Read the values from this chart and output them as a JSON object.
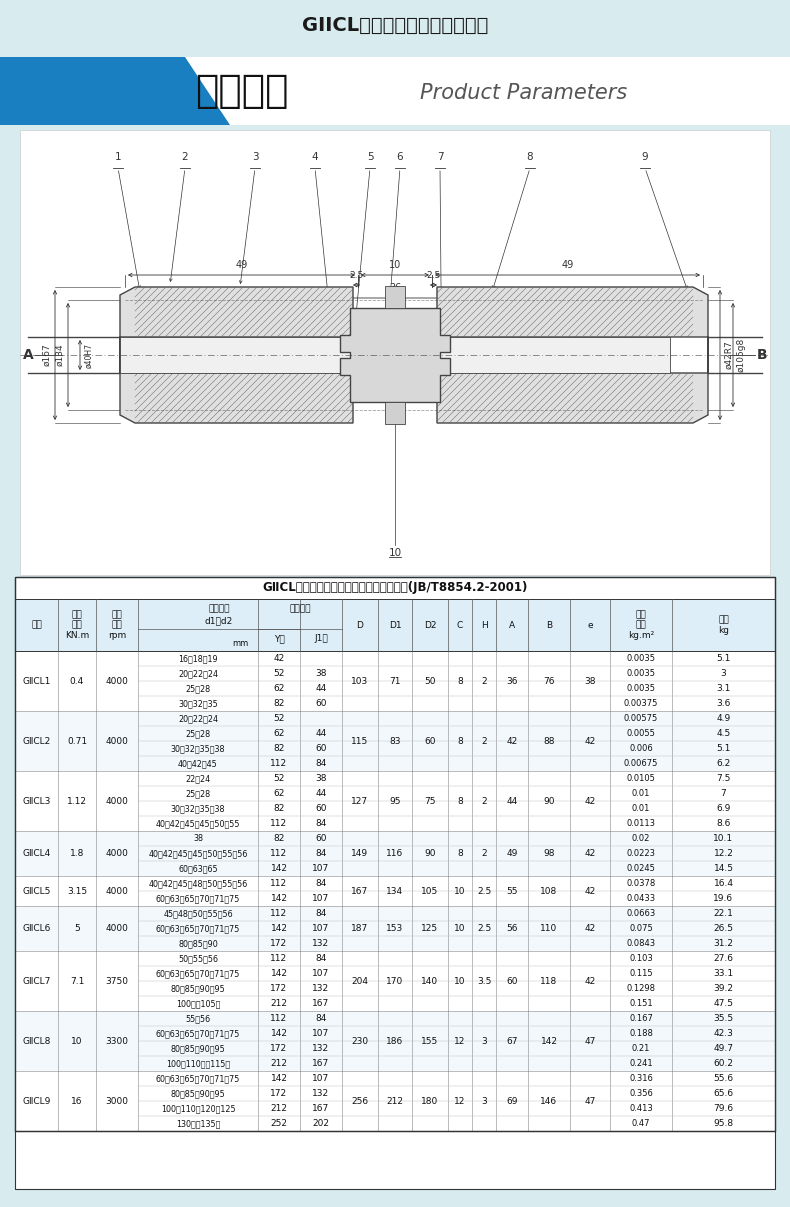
{
  "title": "GIICL型鼓形齿式联轴器测量图",
  "product_params_cn": "产品参数",
  "product_params_en": "Product Parameters",
  "table_title": "GⅡCL型鼓形齿式联轴器的主要尺寸和参数(JB/T8854.2-2001)",
  "bg_color": "#d8ecf0",
  "banner_bg": "#ffffff",
  "blue_color": "#1a7fc0",
  "cad_bg": "#f8f8f8",
  "rows": [
    {
      "model": "GⅡCL1",
      "torque": "0.4",
      "rpm": "4000",
      "bore_groups": [
        {
          "bore": "16、18、19",
          "Y": "42",
          "J1": ""
        },
        {
          "bore": "20、22、24",
          "Y": "52",
          "J1": "38"
        },
        {
          "bore": "25、28",
          "Y": "62",
          "J1": "44"
        },
        {
          "bore": "30、32、35",
          "Y": "82",
          "J1": "60"
        }
      ],
      "D": "103",
      "D1": "71",
      "D2": "50",
      "C": "8",
      "H": "2",
      "A": "36",
      "B": "76",
      "e": "38",
      "inertia": [
        "0.0035",
        "0.0035",
        "0.0035",
        "0.00375"
      ],
      "weight": [
        "5.1",
        "3",
        "3.1",
        "3.6"
      ]
    },
    {
      "model": "GⅡCL2",
      "torque": "0.71",
      "rpm": "4000",
      "bore_groups": [
        {
          "bore": "20、22、24",
          "Y": "52",
          "J1": ""
        },
        {
          "bore": "25、28",
          "Y": "62",
          "J1": "44"
        },
        {
          "bore": "30、32、35、38",
          "Y": "82",
          "J1": "60"
        },
        {
          "bore": "40、42、45",
          "Y": "112",
          "J1": "84"
        }
      ],
      "D": "115",
      "D1": "83",
      "D2": "60",
      "C": "8",
      "H": "2",
      "A": "42",
      "B": "88",
      "e": "42",
      "inertia": [
        "0.00575",
        "0.0055",
        "0.006",
        "0.00675"
      ],
      "weight": [
        "4.9",
        "4.5",
        "5.1",
        "6.2"
      ]
    },
    {
      "model": "GⅡCL3",
      "torque": "1.12",
      "rpm": "4000",
      "bore_groups": [
        {
          "bore": "22、24",
          "Y": "52",
          "J1": "38"
        },
        {
          "bore": "25、28",
          "Y": "62",
          "J1": "44"
        },
        {
          "bore": "30、32、35、38",
          "Y": "82",
          "J1": "60"
        },
        {
          "bore": "40、42、45、45、50、55",
          "Y": "112",
          "J1": "84"
        }
      ],
      "D": "127",
      "D1": "95",
      "D2": "75",
      "C": "8",
      "H": "2",
      "A": "44",
      "B": "90",
      "e": "42",
      "inertia": [
        "0.0105",
        "0.01",
        "0.01",
        "0.0113"
      ],
      "weight": [
        "7.5",
        "7",
        "6.9",
        "8.6"
      ]
    },
    {
      "model": "GⅡCL4",
      "torque": "1.8",
      "rpm": "4000",
      "bore_groups": [
        {
          "bore": "38",
          "Y": "82",
          "J1": "60"
        },
        {
          "bore": "40、42、45、45、50、55、56",
          "Y": "112",
          "J1": "84"
        },
        {
          "bore": "60、63、65",
          "Y": "142",
          "J1": "107"
        }
      ],
      "D": "149",
      "D1": "116",
      "D2": "90",
      "C": "8",
      "H": "2",
      "A": "49",
      "B": "98",
      "e": "42",
      "inertia": [
        "0.02",
        "0.0223",
        "0.0245"
      ],
      "weight": [
        "10.1",
        "12.2",
        "14.5"
      ]
    },
    {
      "model": "GⅡCL5",
      "torque": "3.15",
      "rpm": "4000",
      "bore_groups": [
        {
          "bore": "40、42、45、48、50、55、56",
          "Y": "112",
          "J1": "84"
        },
        {
          "bore": "60、63、65、70、71、75",
          "Y": "142",
          "J1": "107"
        }
      ],
      "D": "167",
      "D1": "134",
      "D2": "105",
      "C": "10",
      "H": "2.5",
      "A": "55",
      "B": "108",
      "e": "42",
      "inertia": [
        "0.0378",
        "0.0433"
      ],
      "weight": [
        "16.4",
        "19.6"
      ]
    },
    {
      "model": "GⅡCL6",
      "torque": "5",
      "rpm": "4000",
      "bore_groups": [
        {
          "bore": "45、48、50、55、56",
          "Y": "112",
          "J1": "84"
        },
        {
          "bore": "60、63、65、70、71、75",
          "Y": "142",
          "J1": "107"
        },
        {
          "bore": "80、85、90",
          "Y": "172",
          "J1": "132"
        }
      ],
      "D": "187",
      "D1": "153",
      "D2": "125",
      "C": "10",
      "H": "2.5",
      "A": "56",
      "B": "110",
      "e": "42",
      "inertia": [
        "0.0663",
        "0.075",
        "0.0843"
      ],
      "weight": [
        "22.1",
        "26.5",
        "31.2"
      ]
    },
    {
      "model": "GⅡCL7",
      "torque": "7.1",
      "rpm": "3750",
      "bore_groups": [
        {
          "bore": "50、55、56",
          "Y": "112",
          "J1": "84"
        },
        {
          "bore": "60、63、65、70、71、75",
          "Y": "142",
          "J1": "107"
        },
        {
          "bore": "80、85、90、95",
          "Y": "172",
          "J1": "132"
        },
        {
          "bore": "100、（105）",
          "Y": "212",
          "J1": "167"
        }
      ],
      "D": "204",
      "D1": "170",
      "D2": "140",
      "C": "10",
      "H": "3.5",
      "A": "60",
      "B": "118",
      "e": "42",
      "inertia": [
        "0.103",
        "0.115",
        "0.1298",
        "0.151"
      ],
      "weight": [
        "27.6",
        "33.1",
        "39.2",
        "47.5"
      ]
    },
    {
      "model": "GⅡCL8",
      "torque": "10",
      "rpm": "3300",
      "bore_groups": [
        {
          "bore": "55、56",
          "Y": "112",
          "J1": "84"
        },
        {
          "bore": "60、63、65、70、71、75",
          "Y": "142",
          "J1": "107"
        },
        {
          "bore": "80、85、90、95",
          "Y": "172",
          "J1": "132"
        },
        {
          "bore": "100、110、（115）",
          "Y": "212",
          "J1": "167"
        }
      ],
      "D": "230",
      "D1": "186",
      "D2": "155",
      "C": "12",
      "H": "3",
      "A": "67",
      "B": "142",
      "e": "47",
      "inertia": [
        "0.167",
        "0.188",
        "0.21",
        "0.241"
      ],
      "weight": [
        "35.5",
        "42.3",
        "49.7",
        "60.2"
      ]
    },
    {
      "model": "GⅡCL9",
      "torque": "16",
      "rpm": "3000",
      "bore_groups": [
        {
          "bore": "60、63、65、70、71、75",
          "Y": "142",
          "J1": "107"
        },
        {
          "bore": "80、85、90、95",
          "Y": "172",
          "J1": "132"
        },
        {
          "bore": "100、110、120、125",
          "Y": "212",
          "J1": "167"
        },
        {
          "bore": "130、（135）",
          "Y": "252",
          "J1": "202"
        }
      ],
      "D": "256",
      "D1": "212",
      "D2": "180",
      "C": "12",
      "H": "3",
      "A": "69",
      "B": "146",
      "e": "47",
      "inertia": [
        "0.316",
        "0.356",
        "0.413",
        "0.47"
      ],
      "weight": [
        "55.6",
        "65.6",
        "79.6",
        "95.8"
      ]
    }
  ]
}
